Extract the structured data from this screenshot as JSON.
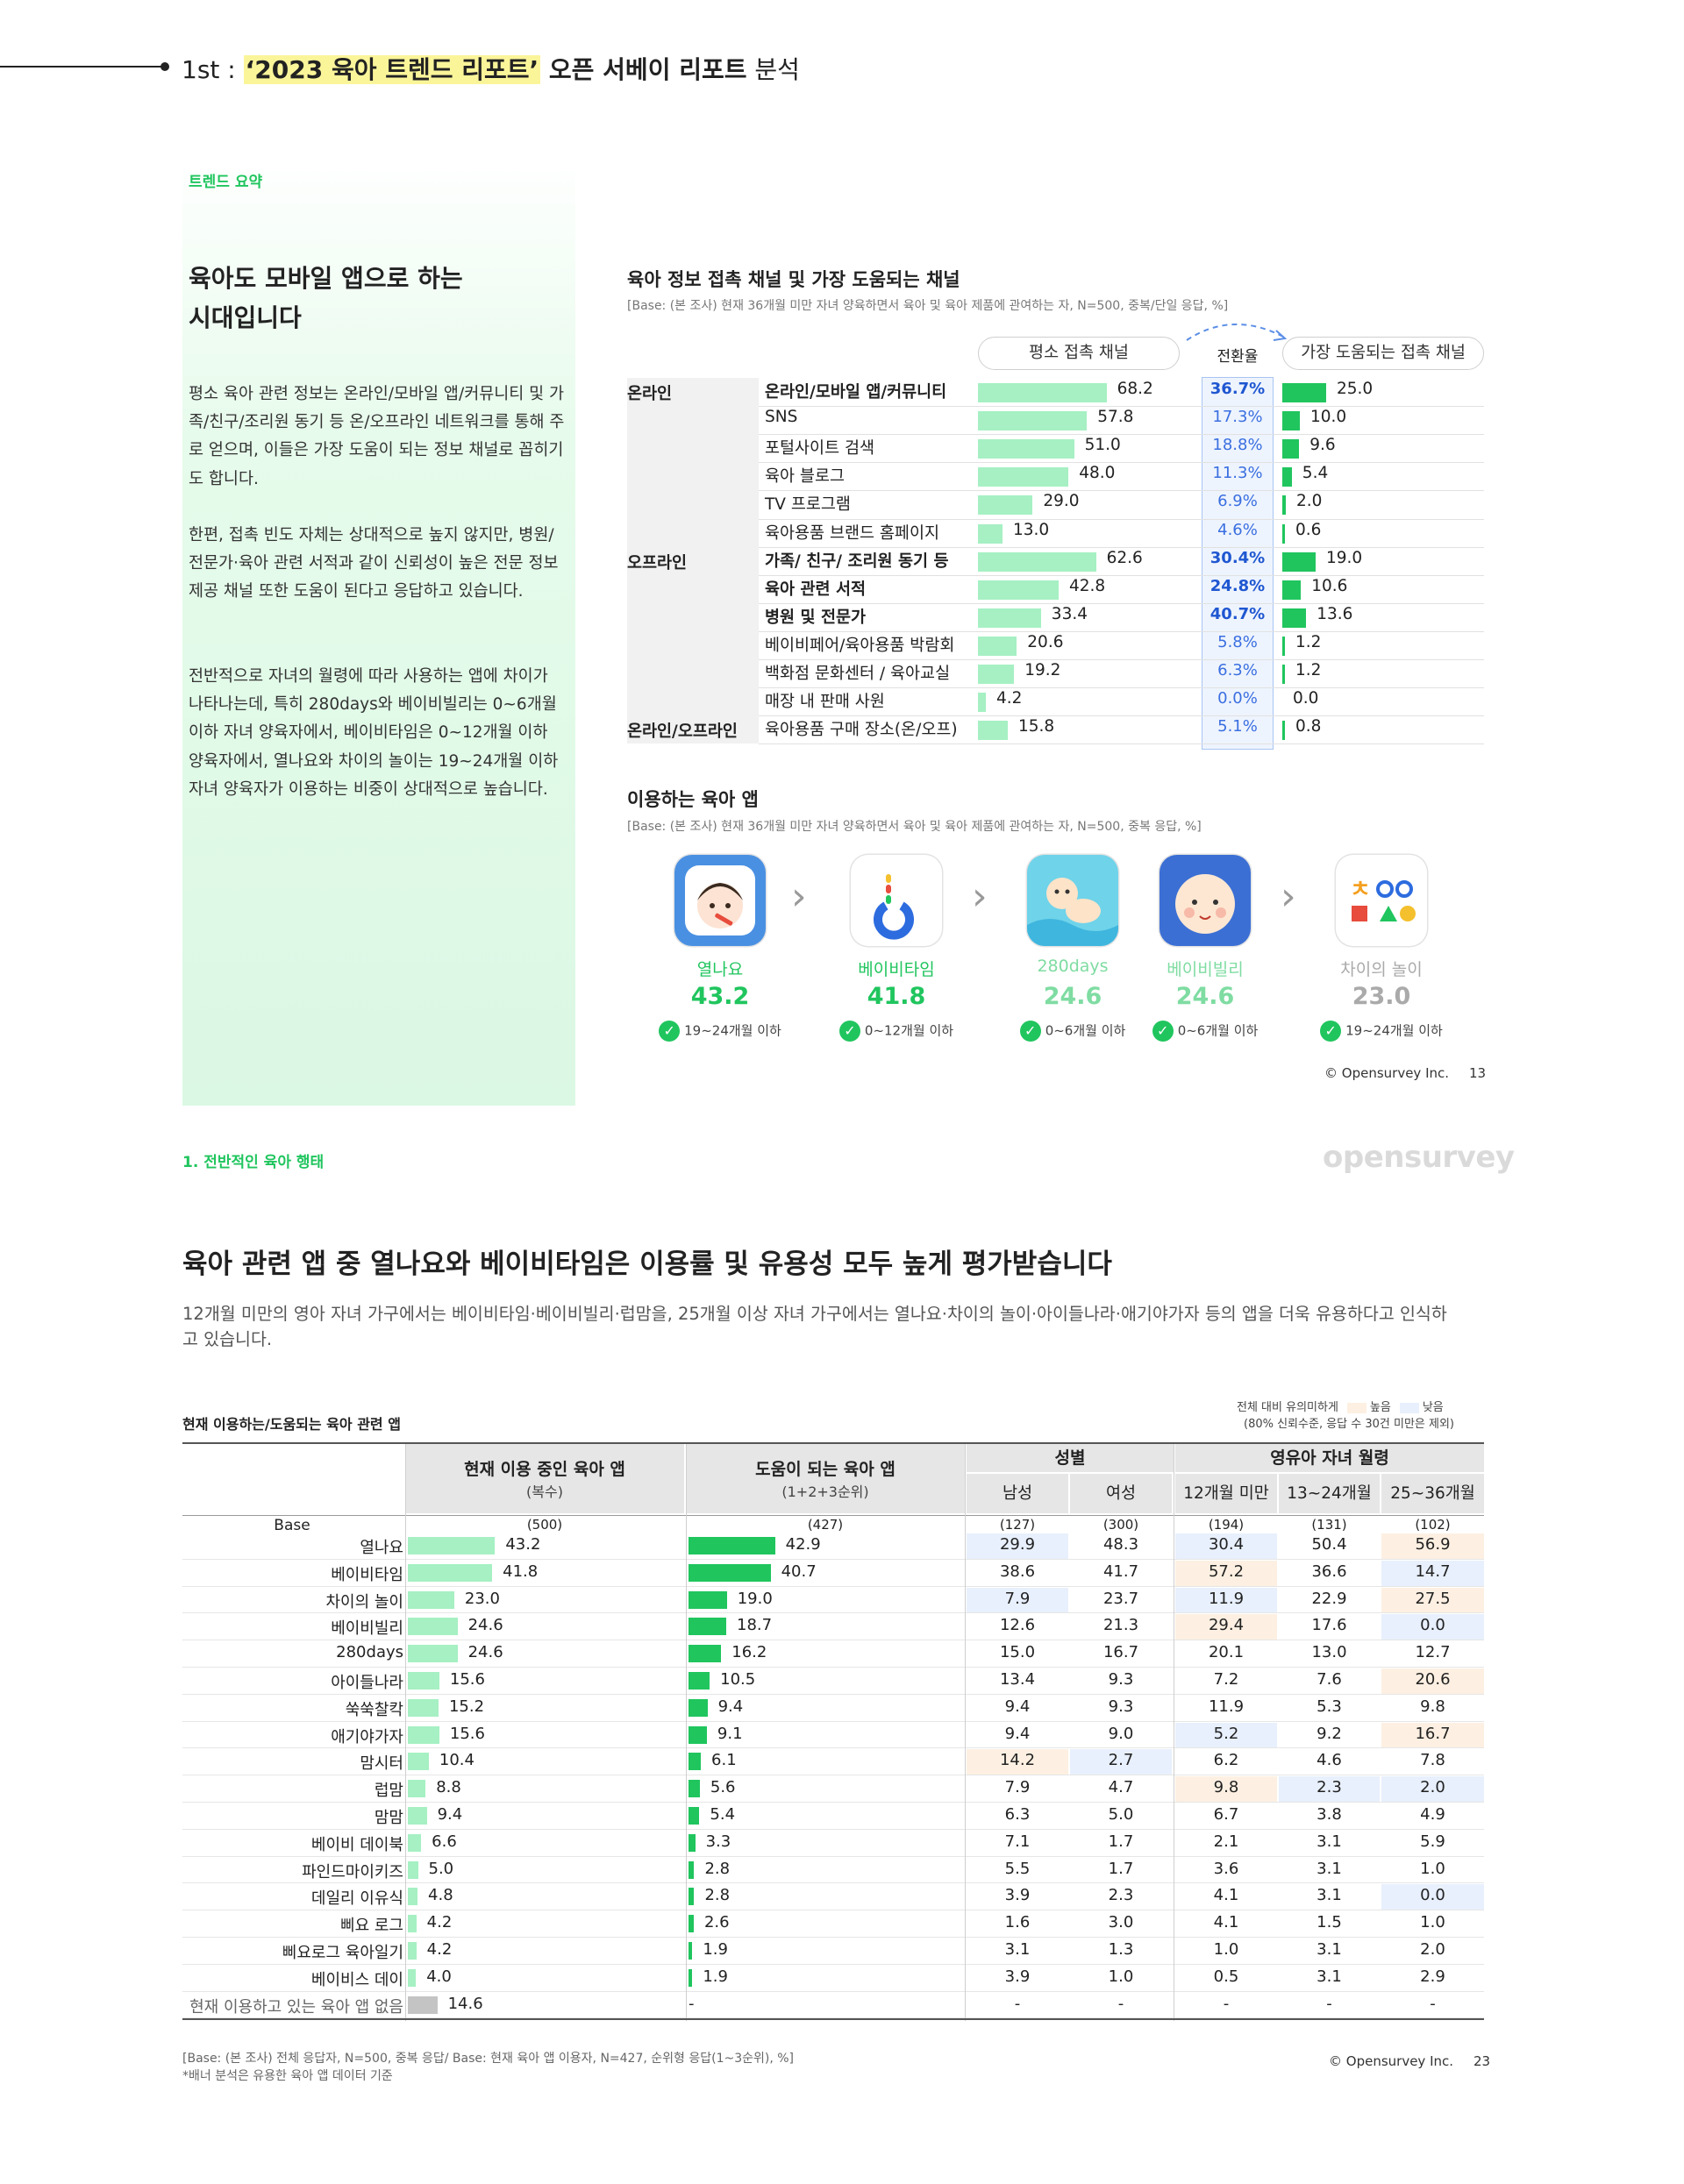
{
  "header": {
    "prefix": "1st : ",
    "highlight": "‘2023 육아 트렌드 리포트’",
    "bold_tail": " 오픈 서베이 리포트",
    "tail": " 분석"
  },
  "summary": {
    "tag": "트렌드 요약",
    "title_lines": [
      "육아도 모바일 앱으로 하는",
      "시대입니다"
    ],
    "paragraphs": [
      "평소 육아 관련 정보는 온라인/모바일 앱/커뮤니티 및 가족/친구/조리원 동기 등 온/오프라인 네트워크를 통해 주로 얻으며, 이들은 가장 도움이 되는 정보 채널로 꼽히기도 합니다.",
      "한편, 접촉 빈도 자체는 상대적으로 높지 않지만, 병원/전문가·육아 관련 서적과 같이 신뢰성이 높은 전문 정보 제공 채널 또한 도움이 된다고 응답하고 있습니다.",
      "전반적으로 자녀의 월령에 따라 사용하는 앱에 차이가 나타나는데, 특히 280days와 베이비빌리는 0~6개월 이하 자녀 양육자에서, 베이비타임은 0~12개월 이하 양육자에서, 열나요와 차이의 놀이는 19~24개월 이하 자녀 양육자가 이용하는 비중이 상대적으로 높습니다."
    ]
  },
  "channels": {
    "title": "육아 정보 접촉 채널 및 가장 도움되는 채널",
    "base": "[Base: (본 조사) 현재 36개월 미만 자녀 양육하면서 육아 및 육아 제품에 관여하는 자, N=500, 중복/단일 응답, %]",
    "col_contact": "평소 접촉 채널",
    "col_conv": "전환율",
    "col_helpful": "가장 도움되는 접촉 채널",
    "groups": [
      {
        "name": "온라인",
        "rows": [
          {
            "label": "온라인/모바일 앱/커뮤니티",
            "bold": true,
            "contact": "68.2",
            "conv": "36.7%",
            "conv_bold": true,
            "helpful": "25.0"
          },
          {
            "label": "SNS",
            "bold": false,
            "contact": "57.8",
            "conv": "17.3%",
            "conv_bold": false,
            "helpful": "10.0"
          },
          {
            "label": "포털사이트 검색",
            "bold": false,
            "contact": "51.0",
            "conv": "18.8%",
            "conv_bold": false,
            "helpful": "9.6"
          },
          {
            "label": "육아 블로그",
            "bold": false,
            "contact": "48.0",
            "conv": "11.3%",
            "conv_bold": false,
            "helpful": "5.4"
          },
          {
            "label": "TV 프로그램",
            "bold": false,
            "contact": "29.0",
            "conv": "6.9%",
            "conv_bold": false,
            "helpful": "2.0"
          },
          {
            "label": "육아용품 브랜드 홈페이지",
            "bold": false,
            "contact": "13.0",
            "conv": "4.6%",
            "conv_bold": false,
            "helpful": "0.6"
          }
        ]
      },
      {
        "name": "오프라인",
        "rows": [
          {
            "label": "가족/ 친구/ 조리원 동기 등",
            "bold": true,
            "contact": "62.6",
            "conv": "30.4%",
            "conv_bold": true,
            "helpful": "19.0"
          },
          {
            "label": "육아 관련 서적",
            "bold": true,
            "contact": "42.8",
            "conv": "24.8%",
            "conv_bold": true,
            "helpful": "10.6"
          },
          {
            "label": "병원 및 전문가",
            "bold": true,
            "contact": "33.4",
            "conv": "40.7%",
            "conv_bold": true,
            "helpful": "13.6"
          },
          {
            "label": "베이비페어/육아용품 박람회",
            "bold": false,
            "contact": "20.6",
            "conv": "5.8%",
            "conv_bold": false,
            "helpful": "1.2"
          },
          {
            "label": "백화점 문화센터 / 육아교실",
            "bold": false,
            "contact": "19.2",
            "conv": "6.3%",
            "conv_bold": false,
            "helpful": "1.2"
          },
          {
            "label": "매장 내 판매 사원",
            "bold": false,
            "contact": "4.2",
            "conv": "0.0%",
            "conv_bold": false,
            "helpful": "0.0"
          }
        ]
      },
      {
        "name": "온라인/오프라인",
        "rows": [
          {
            "label": "육아용품 구매 장소(온/오프)",
            "bold": false,
            "contact": "15.8",
            "conv": "5.1%",
            "conv_bold": false,
            "helpful": "0.8"
          }
        ]
      }
    ]
  },
  "apps": {
    "title": "이용하는 육아 앱",
    "base": "[Base: (본 조사) 현재 36개월 미만 자녀 양육하면서 육아 및 육아 제품에 관여하는 자, N=500, 중복 응답, %]",
    "items": [
      {
        "name": "열나요",
        "value": "43.2",
        "note": "19~24개월 이하",
        "icon": "baby-fever-icon",
        "color": "#20c55e"
      },
      {
        "name": "베이비타임",
        "value": "41.8",
        "note": "0~12개월 이하",
        "icon": "babytime-logo-icon",
        "color": "#20c55e"
      },
      {
        "name": "280days",
        "value": "24.6",
        "note": "0~6개월 이하",
        "icon": "baby-swim-icon",
        "color": "#7fdca2"
      },
      {
        "name": "베이비빌리",
        "value": "24.6",
        "note": "0~6개월 이하",
        "icon": "baby-face-icon",
        "color": "#7fdca2"
      },
      {
        "name": "차이의 놀이",
        "value": "23.0",
        "note": "19~24개월 이하",
        "icon": "shapes-logo-icon",
        "color": "#aaaaaa"
      }
    ],
    "arrow_icon": "chevron-right-icon",
    "check_icon": "check-circle-icon"
  },
  "copyright1": "© Opensurvey Inc.",
  "page1": "13",
  "section2": {
    "tag": "1. 전반적인 육아 행태",
    "logo": "opensurvey",
    "title": "육아 관련 앱 중 열나요와 베이비타임은 이용률 및 유용성 모두 높게 평가받습니다",
    "desc": "12개월 미만의 영아 자녀 가구에서는 베이비타임·베이비빌리·럽맘을, 25개월 이상 자녀 가구에서는 열나요·차이의 놀이·아이들나라·애기야가자 등의 앱을 더욱 유용하다고 인식하고 있습니다."
  },
  "table": {
    "title": "현재 이용하는/도움되는 육아 관련 앱",
    "sig_label": "전체 대비 유의미하게",
    "sig_high": "높음",
    "sig_low": "낮음",
    "sig_sub": "(80% 신뢰수준, 응답 수 30건 미만은 제외)",
    "col_using": "현재 이용 중인 육아 앱",
    "col_using_sub": "(복수)",
    "col_helpful": "도움이 되는 육아 앱",
    "col_helpful_sub": "(1+2+3순위)",
    "col_gender": "성별",
    "col_age": "영유아 자녀 월령",
    "sub_cols": [
      "남성",
      "여성",
      "12개월 미만",
      "13~24개월",
      "25~36개월"
    ],
    "base_label": "Base",
    "base_values": [
      "(500)",
      "(427)",
      "(127)",
      "(300)",
      "(194)",
      "(131)",
      "(102)"
    ],
    "colors": {
      "high": "#fdf0e2",
      "low": "#e8f0fd",
      "bar_light": "#a6f0c3",
      "bar_dark": "#20c55e",
      "bar_gray": "#c4c4c4"
    },
    "rows": [
      {
        "label": "열나요",
        "using": "43.2",
        "helpful": "42.9",
        "cells": [
          "29.9",
          "48.3",
          "30.4",
          "50.4",
          "56.9"
        ],
        "sig": [
          "lo",
          "",
          "lo",
          "",
          "hi"
        ]
      },
      {
        "label": "베이비타임",
        "using": "41.8",
        "helpful": "40.7",
        "cells": [
          "38.6",
          "41.7",
          "57.2",
          "36.6",
          "14.7"
        ],
        "sig": [
          "",
          "",
          "hi",
          "",
          "lo"
        ]
      },
      {
        "label": "차이의 놀이",
        "using": "23.0",
        "helpful": "19.0",
        "cells": [
          "7.9",
          "23.7",
          "11.9",
          "22.9",
          "27.5"
        ],
        "sig": [
          "lo",
          "",
          "lo",
          "",
          "hi"
        ]
      },
      {
        "label": "베이비빌리",
        "using": "24.6",
        "helpful": "18.7",
        "cells": [
          "12.6",
          "21.3",
          "29.4",
          "17.6",
          "0.0"
        ],
        "sig": [
          "",
          "",
          "hi",
          "",
          "lo"
        ]
      },
      {
        "label": "280days",
        "using": "24.6",
        "helpful": "16.2",
        "cells": [
          "15.0",
          "16.7",
          "20.1",
          "13.0",
          "12.7"
        ],
        "sig": [
          "",
          "",
          "",
          "",
          ""
        ]
      },
      {
        "label": "아이들나라",
        "using": "15.6",
        "helpful": "10.5",
        "cells": [
          "13.4",
          "9.3",
          "7.2",
          "7.6",
          "20.6"
        ],
        "sig": [
          "",
          "",
          "",
          "",
          "hi"
        ]
      },
      {
        "label": "쑥쑥찰칵",
        "using": "15.2",
        "helpful": "9.4",
        "cells": [
          "9.4",
          "9.3",
          "11.9",
          "5.3",
          "9.8"
        ],
        "sig": [
          "",
          "",
          "",
          "",
          ""
        ]
      },
      {
        "label": "애기야가자",
        "using": "15.6",
        "helpful": "9.1",
        "cells": [
          "9.4",
          "9.0",
          "5.2",
          "9.2",
          "16.7"
        ],
        "sig": [
          "",
          "",
          "lo",
          "",
          "hi"
        ]
      },
      {
        "label": "맘시터",
        "using": "10.4",
        "helpful": "6.1",
        "cells": [
          "14.2",
          "2.7",
          "6.2",
          "4.6",
          "7.8"
        ],
        "sig": [
          "hi",
          "lo",
          "",
          "",
          ""
        ]
      },
      {
        "label": "럽맘",
        "using": "8.8",
        "helpful": "5.6",
        "cells": [
          "7.9",
          "4.7",
          "9.8",
          "2.3",
          "2.0"
        ],
        "sig": [
          "",
          "",
          "hi",
          "lo",
          "lo"
        ]
      },
      {
        "label": "맘맘",
        "using": "9.4",
        "helpful": "5.4",
        "cells": [
          "6.3",
          "5.0",
          "6.7",
          "3.8",
          "4.9"
        ],
        "sig": [
          "",
          "",
          "",
          "",
          ""
        ]
      },
      {
        "label": "베이비 데이북",
        "using": "6.6",
        "helpful": "3.3",
        "cells": [
          "7.1",
          "1.7",
          "2.1",
          "3.1",
          "5.9"
        ],
        "sig": [
          "",
          "",
          "",
          "",
          ""
        ]
      },
      {
        "label": "파인드마이키즈",
        "using": "5.0",
        "helpful": "2.8",
        "cells": [
          "5.5",
          "1.7",
          "3.6",
          "3.1",
          "1.0"
        ],
        "sig": [
          "",
          "",
          "",
          "",
          ""
        ]
      },
      {
        "label": "데일리 이유식",
        "using": "4.8",
        "helpful": "2.8",
        "cells": [
          "3.9",
          "2.3",
          "4.1",
          "3.1",
          "0.0"
        ],
        "sig": [
          "",
          "",
          "",
          "",
          "lo"
        ]
      },
      {
        "label": "삐요 로그",
        "using": "4.2",
        "helpful": "2.6",
        "cells": [
          "1.6",
          "3.0",
          "4.1",
          "1.5",
          "1.0"
        ],
        "sig": [
          "",
          "",
          "",
          "",
          ""
        ]
      },
      {
        "label": "삐요로그 육아일기",
        "using": "4.2",
        "helpful": "1.9",
        "cells": [
          "3.1",
          "1.3",
          "1.0",
          "3.1",
          "2.0"
        ],
        "sig": [
          "",
          "",
          "",
          "",
          ""
        ]
      },
      {
        "label": "베이비스 데이",
        "using": "4.0",
        "helpful": "1.9",
        "cells": [
          "3.9",
          "1.0",
          "0.5",
          "3.1",
          "2.9"
        ],
        "sig": [
          "",
          "",
          "",
          "",
          ""
        ]
      },
      {
        "label": "현재 이용하고 있는 육아 앱 없음",
        "using": "14.6",
        "helpful": "-",
        "cells": [
          "-",
          "-",
          "-",
          "-",
          "-"
        ],
        "sig": [
          "",
          "",
          "",
          "",
          ""
        ],
        "gray": true
      }
    ],
    "footnote1": "[Base: (본 조사) 전체 응답자, N=500, 중복 응답/ Base: 현재 육아 앱 이용자, N=427, 순위형 응답(1~3순위), %]",
    "footnote2": "*배너 분석은 유용한 육아 앱 데이터 기준"
  },
  "copyright2": "© Opensurvey Inc.",
  "page2": "23"
}
